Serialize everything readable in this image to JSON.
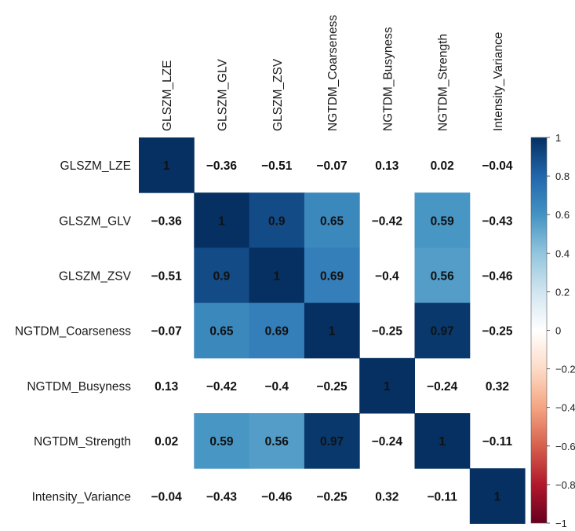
{
  "chart_data": {
    "type": "heatmap",
    "title": "",
    "variables": [
      "GLSZM_LZE",
      "GLSZM_GLV",
      "GLSZM_ZSV",
      "NGTDM_Coarseness",
      "NGTDM_Busyness",
      "NGTDM_Strength",
      "Intensity_Variance"
    ],
    "matrix": [
      [
        1,
        -0.36,
        -0.51,
        -0.07,
        0.13,
        0.02,
        -0.04
      ],
      [
        -0.36,
        1,
        0.9,
        0.65,
        -0.42,
        0.59,
        -0.43
      ],
      [
        -0.51,
        0.9,
        1,
        0.69,
        -0.4,
        0.56,
        -0.46
      ],
      [
        -0.07,
        0.65,
        0.69,
        1,
        -0.25,
        0.97,
        -0.25
      ],
      [
        0.13,
        -0.42,
        -0.4,
        -0.25,
        1,
        -0.24,
        0.32
      ],
      [
        0.02,
        0.59,
        0.56,
        0.97,
        -0.24,
        1,
        -0.11
      ],
      [
        -0.04,
        -0.43,
        -0.46,
        -0.25,
        0.32,
        -0.11,
        1
      ]
    ],
    "labels": [
      [
        "1",
        "−0.36",
        "−0.51",
        "−0.07",
        "0.13",
        "0.02",
        "−0.04"
      ],
      [
        "−0.36",
        "1",
        "0.9",
        "0.65",
        "−0.42",
        "0.59",
        "−0.43"
      ],
      [
        "−0.51",
        "0.9",
        "1",
        "0.69",
        "−0.4",
        "0.56",
        "−0.46"
      ],
      [
        "−0.07",
        "0.65",
        "0.69",
        "1",
        "−0.25",
        "0.97",
        "−0.25"
      ],
      [
        "0.13",
        "−0.42",
        "−0.4",
        "−0.25",
        "1",
        "−0.24",
        "0.32"
      ],
      [
        "0.02",
        "0.59",
        "0.56",
        "0.97",
        "−0.24",
        "1",
        "−0.11"
      ],
      [
        "−0.04",
        "−0.43",
        "−0.46",
        "−0.25",
        "0.32",
        "−0.11",
        "1"
      ]
    ],
    "highlighted_cells": [
      [
        0,
        0
      ],
      [
        1,
        1
      ],
      [
        1,
        2
      ],
      [
        1,
        3
      ],
      [
        1,
        5
      ],
      [
        2,
        1
      ],
      [
        2,
        2
      ],
      [
        2,
        3
      ],
      [
        2,
        5
      ],
      [
        3,
        1
      ],
      [
        3,
        2
      ],
      [
        3,
        3
      ],
      [
        3,
        5
      ],
      [
        4,
        4
      ],
      [
        5,
        1
      ],
      [
        5,
        2
      ],
      [
        5,
        3
      ],
      [
        5,
        5
      ],
      [
        6,
        6
      ]
    ],
    "colorbar": {
      "range": [
        -1,
        1
      ],
      "tick_values": [
        1,
        0.8,
        0.6,
        0.4,
        0.2,
        0,
        -0.2,
        -0.4,
        -0.6,
        -0.8,
        -1
      ],
      "tick_labels": [
        "1",
        "0.8",
        "0.6",
        "0.4",
        "0.2",
        "0",
        "−0.2",
        "−0.4",
        "−0.6",
        "−0.8",
        "−1"
      ],
      "colors": {
        "neg": "#67001f",
        "mid": "#ffffff",
        "pos": "#053061"
      }
    }
  }
}
